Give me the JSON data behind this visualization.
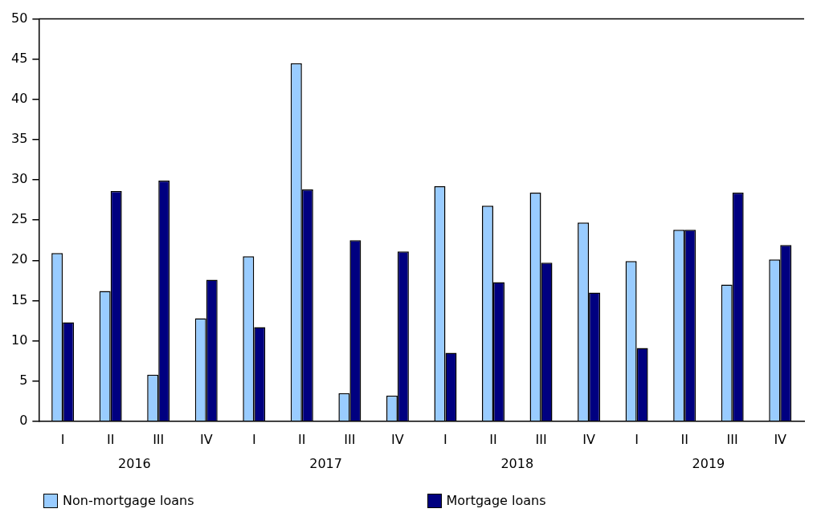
{
  "chart_data": {
    "type": "bar",
    "categories": [
      "I",
      "II",
      "III",
      "IV",
      "I",
      "II",
      "III",
      "IV",
      "I",
      "II",
      "III",
      "IV",
      "I",
      "II",
      "III",
      "IV"
    ],
    "series": [
      {
        "name": "Non-mortgage loans",
        "color": "#99ccff",
        "values": [
          20.9,
          16.2,
          5.8,
          12.8,
          20.5,
          44.5,
          3.5,
          3.2,
          29.2,
          26.8,
          28.4,
          24.7,
          19.9,
          23.8,
          17.0,
          20.1
        ]
      },
      {
        "name": "Mortgage loans",
        "color": "#000080",
        "values": [
          12.3,
          28.6,
          29.9,
          17.6,
          11.7,
          28.8,
          22.5,
          21.1,
          8.5,
          17.3,
          19.7,
          16.0,
          9.1,
          23.8,
          28.4,
          21.9
        ]
      }
    ],
    "annotations": [
      "2016",
      "2017",
      "2018",
      "2019"
    ],
    "ylim": [
      0,
      50
    ],
    "yticks": [
      0,
      5,
      10,
      15,
      20,
      25,
      30,
      35,
      40,
      45,
      50
    ],
    "grid": false,
    "legend": "bottom"
  }
}
